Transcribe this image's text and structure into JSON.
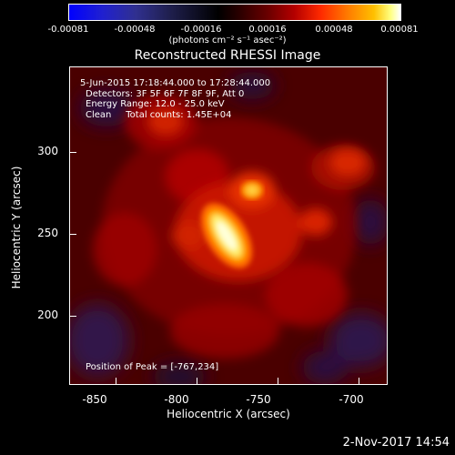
{
  "colorbar": {
    "ticks": [
      "-0.00081",
      "-0.00048",
      "-0.00016",
      "0.00016",
      "0.00048",
      "0.00081"
    ],
    "units": "(photons cm⁻² s⁻¹ asec⁻²)"
  },
  "title": "Reconstructed RHESSI Image",
  "annotations": {
    "time": "5-Jun-2015 17:18:44.000 to 17:28:44.000",
    "detectors": "Detectors: 3F 5F 6F 7F 8F 9F, Att 0",
    "energy": "Energy Range: 12.0 - 25.0 keV",
    "clean": "Clean     Total counts: 1.45E+04",
    "peak": "Position of Peak = [-767,234]"
  },
  "axes": {
    "xlabel": "Heliocentric X (arcsec)",
    "ylabel": "Heliocentric Y (arcsec)",
    "xticks": [
      "-850",
      "-800",
      "-750",
      "-700"
    ],
    "yticks": [
      "300",
      "250",
      "200"
    ]
  },
  "datestamp": "2-Nov-2017 14:54",
  "colors": {
    "background": "#000000",
    "text": "#ffffff"
  }
}
